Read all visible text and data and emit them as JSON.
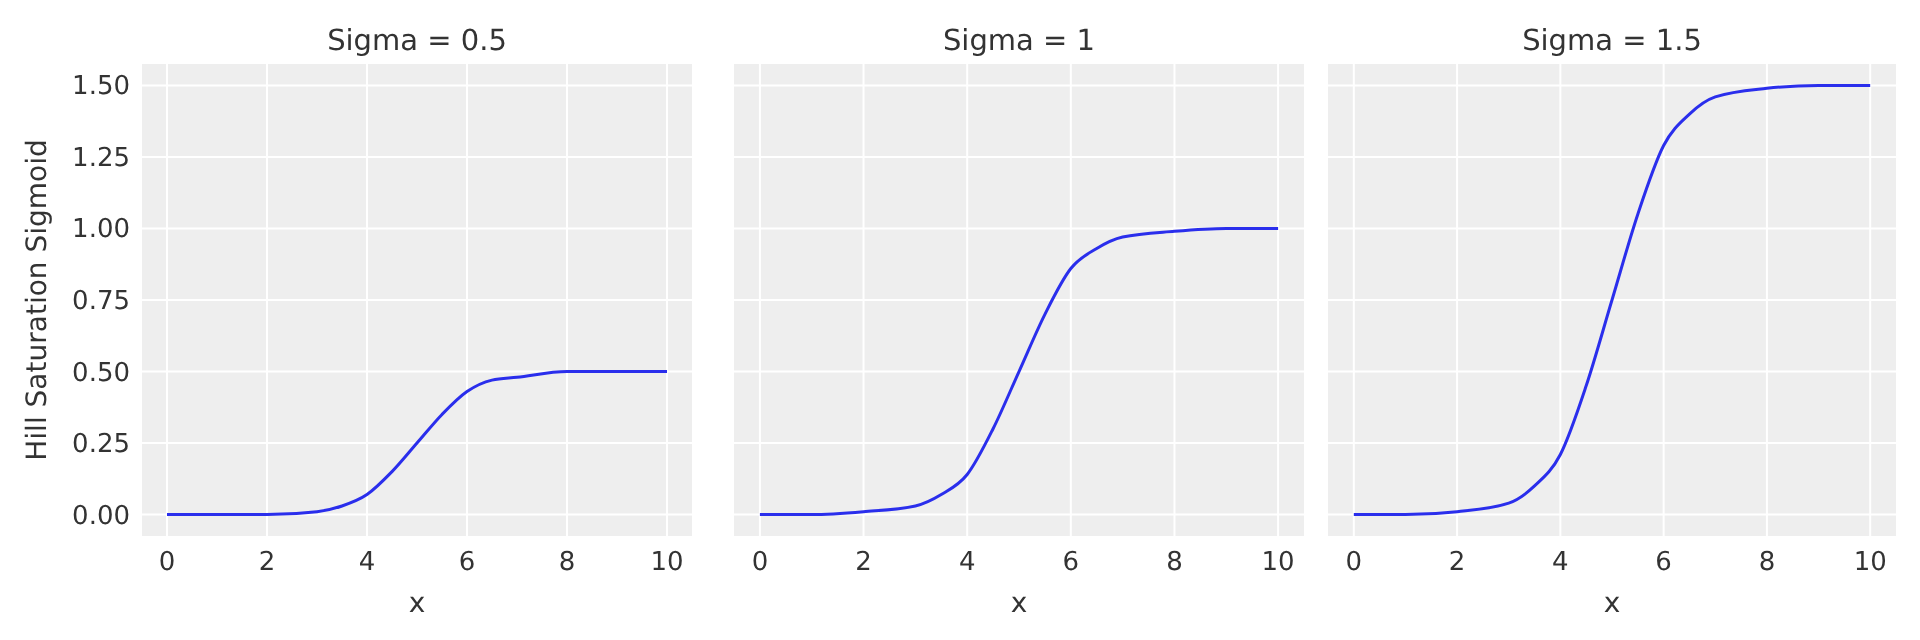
{
  "chart_data": [
    {
      "type": "line",
      "title": "Sigma = 0.5",
      "xlabel": "x",
      "ylabel": "Hill Saturation Sigmoid",
      "x": [
        0,
        1,
        2,
        3,
        3.5,
        4,
        4.5,
        5,
        5.5,
        6,
        6.5,
        7,
        8,
        9,
        10
      ],
      "xlim": [
        -0.5,
        10.5
      ],
      "xticks": [
        0,
        2,
        4,
        6,
        8,
        10
      ],
      "ylim": [
        -0.075,
        1.575
      ],
      "yticks": [
        {
          "value": 0,
          "label": "0.00"
        },
        {
          "value": 0.25,
          "label": "0.25"
        },
        {
          "value": 0.5,
          "label": "0.50"
        },
        {
          "value": 0.75,
          "label": "0.75"
        },
        {
          "value": 1,
          "label": "1.00"
        },
        {
          "value": 1.25,
          "label": "1.25"
        },
        {
          "value": 1.5,
          "label": "1.50"
        }
      ],
      "grid": true,
      "series": [
        {
          "color": "#2a2eec",
          "values": [
            0,
            0,
            0,
            0.01,
            0.03,
            0.07,
            0.15,
            0.25,
            0.35,
            0.43,
            0.47,
            0.48,
            0.5,
            0.5,
            0.5
          ]
        }
      ]
    },
    {
      "type": "line",
      "title": "Sigma = 1",
      "xlabel": "x",
      "x": [
        0,
        1,
        2,
        3,
        3.5,
        4,
        4.5,
        5,
        5.5,
        6,
        6.5,
        7,
        8,
        9,
        10
      ],
      "xlim": [
        -0.5,
        10.5
      ],
      "xticks": [
        0,
        2,
        4,
        6,
        8,
        10
      ],
      "ylim": [
        -0.075,
        1.575
      ],
      "yticks": [
        0,
        0.25,
        0.5,
        0.75,
        1,
        1.25,
        1.5
      ],
      "grid": true,
      "tick_labels": "x",
      "series": [
        {
          "color": "#2a2eec",
          "values": [
            0,
            0,
            0.01,
            0.03,
            0.07,
            0.14,
            0.3,
            0.5,
            0.7,
            0.86,
            0.93,
            0.97,
            0.99,
            1,
            1
          ]
        }
      ]
    },
    {
      "type": "line",
      "title": "Sigma = 1.5",
      "xlabel": "x",
      "x": [
        0,
        1,
        2,
        3,
        3.5,
        4,
        4.5,
        5,
        5.5,
        6,
        6.5,
        7,
        8,
        9,
        10
      ],
      "xlim": [
        -0.5,
        10.5
      ],
      "xticks": [
        0,
        2,
        4,
        6,
        8,
        10
      ],
      "ylim": [
        -0.075,
        1.575
      ],
      "yticks": [
        0,
        0.25,
        0.5,
        0.75,
        1,
        1.25,
        1.5
      ],
      "grid": true,
      "tick_labels": "x",
      "series": [
        {
          "color": "#2a2eec",
          "values": [
            0,
            0,
            0.01,
            0.04,
            0.1,
            0.21,
            0.45,
            0.75,
            1.05,
            1.29,
            1.4,
            1.46,
            1.49,
            1.5,
            1.5
          ]
        }
      ]
    }
  ]
}
